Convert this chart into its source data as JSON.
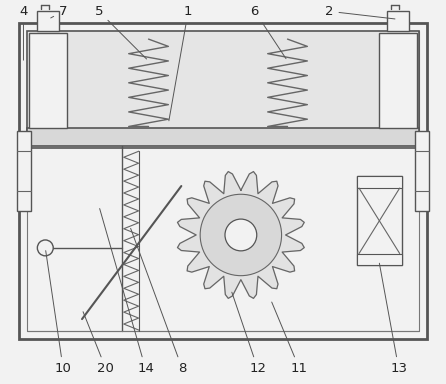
{
  "bg_color": "#f2f2f2",
  "line_color": "#666666",
  "fig_width": 4.46,
  "fig_height": 3.84,
  "dpi": 100
}
